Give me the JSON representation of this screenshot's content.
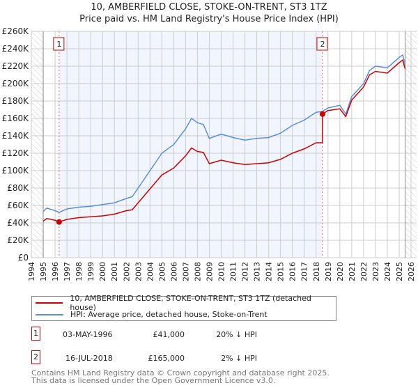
{
  "title": "10, AMBERFIELD CLOSE, STOKE-ON-TRENT, ST3 1TZ",
  "subtitle": "Price paid vs. HM Land Registry's House Price Index (HPI)",
  "chart_data": {
    "type": "line",
    "xlim": [
      1994,
      2026
    ],
    "ylim": [
      0,
      260000
    ],
    "yticks": [
      "£0",
      "£20K",
      "£40K",
      "£60K",
      "£80K",
      "£100K",
      "£120K",
      "£140K",
      "£160K",
      "£180K",
      "£200K",
      "£220K",
      "£240K",
      "£260K"
    ],
    "xticks": [
      "1994",
      "1995",
      "1996",
      "1997",
      "1998",
      "1999",
      "2000",
      "2001",
      "2002",
      "2003",
      "2004",
      "2005",
      "2006",
      "2007",
      "2008",
      "2009",
      "2010",
      "2011",
      "2012",
      "2013",
      "2014",
      "2015",
      "2016",
      "2017",
      "2018",
      "2019",
      "2020",
      "2021",
      "2022",
      "2023",
      "2024",
      "2025",
      "2026"
    ],
    "x": [
      1995,
      1995.3,
      1996,
      1996.34,
      1997,
      1998,
      1999,
      2000,
      2001,
      2002,
      2002.5,
      2003,
      2004,
      2004.5,
      2005,
      2006,
      2007,
      2007.5,
      2008,
      2008.5,
      2009,
      2010,
      2011,
      2012,
      2013,
      2014,
      2015,
      2016,
      2017,
      2018,
      2018.53,
      2018.54,
      2019,
      2020,
      2020.5,
      2021,
      2022,
      2022.5,
      2023,
      2024,
      2025,
      2025.3,
      2025.5
    ],
    "series": [
      {
        "name": "10, AMBERFIELD CLOSE, STOKE-ON-TRENT, ST3 1TZ (detached house)",
        "color": "#cc0000",
        "values": [
          42000,
          45000,
          43000,
          41000,
          44000,
          46000,
          47000,
          48000,
          50000,
          54000,
          55000,
          63000,
          79000,
          87000,
          95000,
          103000,
          117000,
          126000,
          122000,
          121000,
          108000,
          112000,
          109000,
          107000,
          108000,
          109000,
          113000,
          120000,
          125000,
          132000,
          132000,
          165000,
          169000,
          171000,
          162000,
          181000,
          196000,
          210000,
          214000,
          212000,
          224000,
          227000,
          217000
        ]
      },
      {
        "name": "HPI: Average price, detached house, Stoke-on-Trent",
        "color": "#5b8fd6",
        "values": [
          53000,
          57000,
          54000,
          52000,
          56000,
          58000,
          59000,
          61000,
          63000,
          68000,
          70000,
          80000,
          100000,
          110000,
          120000,
          130000,
          148000,
          160000,
          155000,
          153000,
          137000,
          142000,
          138000,
          135000,
          137000,
          138000,
          143000,
          152000,
          158000,
          167000,
          168000,
          168000,
          172000,
          175000,
          165000,
          185000,
          200000,
          215000,
          220000,
          218000,
          230000,
          233000,
          222000
        ]
      }
    ],
    "sales": [
      {
        "label": "1",
        "x": 1996.34,
        "y": 41000
      },
      {
        "label": "2",
        "x": 2018.54,
        "y": 165000
      }
    ]
  },
  "transactions": [
    {
      "num": "1",
      "date": "03-MAY-1996",
      "price": "£41,000",
      "hpi": "20% ↓ HPI"
    },
    {
      "num": "2",
      "date": "16-JUL-2018",
      "price": "£165,000",
      "hpi": "2% ↓ HPI"
    }
  ],
  "footer": [
    "Contains HM Land Registry data © Crown copyright and database right 2025.",
    "This data is licensed under the Open Government Licence v3.0."
  ]
}
